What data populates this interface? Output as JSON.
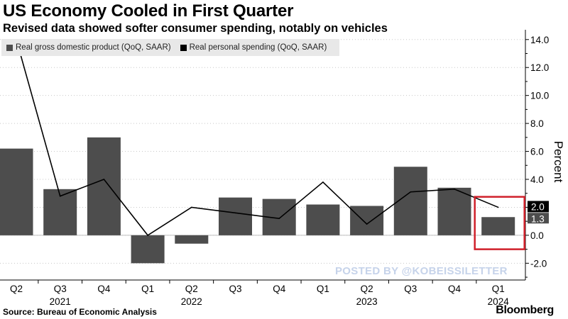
{
  "header": {
    "title": "US Economy Cooled in First Quarter",
    "subtitle": "Revised data showed softer consumer spending, notably on vehicles"
  },
  "footer": {
    "source": "Source: Bureau of Economic Analysis",
    "brand": "Bloomberg",
    "watermark": "POSTED BY @KOBEISSILETTER"
  },
  "colors": {
    "gdp_bar": "#4d4d4d",
    "pce_line": "#000000",
    "highlight_box": "#d0202a",
    "grid": "#c8c8c8",
    "legend_bg": "#e8e8e8"
  },
  "chart_data": {
    "type": "bar",
    "quarters": [
      "Q2",
      "Q3",
      "Q4",
      "Q1",
      "Q2",
      "Q3",
      "Q4",
      "Q1",
      "Q2",
      "Q3",
      "Q4",
      "Q1"
    ],
    "years": [
      {
        "label": "2021",
        "index": 1
      },
      {
        "label": "2022",
        "index": 4
      },
      {
        "label": "2023",
        "index": 8
      },
      {
        "label": "2024",
        "index": 11
      }
    ],
    "series": [
      {
        "name": "Real gross domestic product (QoQ, SAAR)",
        "type": "bar",
        "values": [
          6.2,
          3.3,
          7.0,
          -2.0,
          -0.6,
          2.7,
          2.6,
          2.2,
          2.1,
          4.9,
          3.4,
          1.3
        ]
      },
      {
        "name": "Real personal spending (QoQ, SAAR)",
        "type": "line",
        "values": [
          14.0,
          2.8,
          4.0,
          0.0,
          2.0,
          1.6,
          1.2,
          3.8,
          0.8,
          3.1,
          3.3,
          2.0
        ]
      }
    ],
    "ylabel": "Percent",
    "ylim": [
      -3.2,
      14.8
    ],
    "yticks": [
      -2.0,
      0.0,
      2.0,
      4.0,
      6.0,
      8.0,
      10.0,
      12.0,
      14.0
    ],
    "ytick_labels": [
      "-2.0",
      "0.0",
      "2.0",
      "4.0",
      "6.0",
      "8.0",
      "10.0",
      "12.0",
      "14.0"
    ],
    "last_value_labels": {
      "line": "2.0",
      "bar": "1.3"
    },
    "highlight_index": 11,
    "grid": "horizontal dotted",
    "legend_position": "top-left",
    "y_axis_position": "right"
  }
}
